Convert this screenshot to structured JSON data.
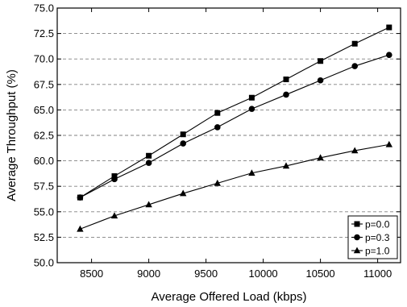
{
  "chart_data": {
    "type": "line",
    "title": "",
    "xlabel": "Average Offered Load (kbps)",
    "ylabel": "Average Throughput (%)",
    "xlim": [
      8200,
      11200
    ],
    "ylim": [
      50.0,
      75.0
    ],
    "xticks": [
      8500,
      9000,
      9500,
      10000,
      10500,
      11000
    ],
    "yticks": [
      50.0,
      52.5,
      55.0,
      57.5,
      60.0,
      62.5,
      65.0,
      67.5,
      70.0,
      72.5,
      75.0
    ],
    "x": [
      8400,
      8700,
      9000,
      9300,
      9600,
      9900,
      10200,
      10500,
      10800,
      11100
    ],
    "grid": "horizontal-dashed",
    "legend_position": "bottom-right",
    "series": [
      {
        "name": "p=0.0",
        "marker": "square",
        "values": [
          56.4,
          58.5,
          60.5,
          62.6,
          64.7,
          66.2,
          68.0,
          69.8,
          71.5,
          73.1
        ]
      },
      {
        "name": "p=0.3",
        "marker": "circle",
        "values": [
          56.4,
          58.2,
          59.8,
          61.7,
          63.3,
          65.1,
          66.5,
          67.9,
          69.3,
          70.4
        ]
      },
      {
        "name": "p=1.0",
        "marker": "triangle",
        "values": [
          53.3,
          54.6,
          55.7,
          56.8,
          57.8,
          58.8,
          59.5,
          60.3,
          61.0,
          61.6
        ]
      }
    ]
  }
}
